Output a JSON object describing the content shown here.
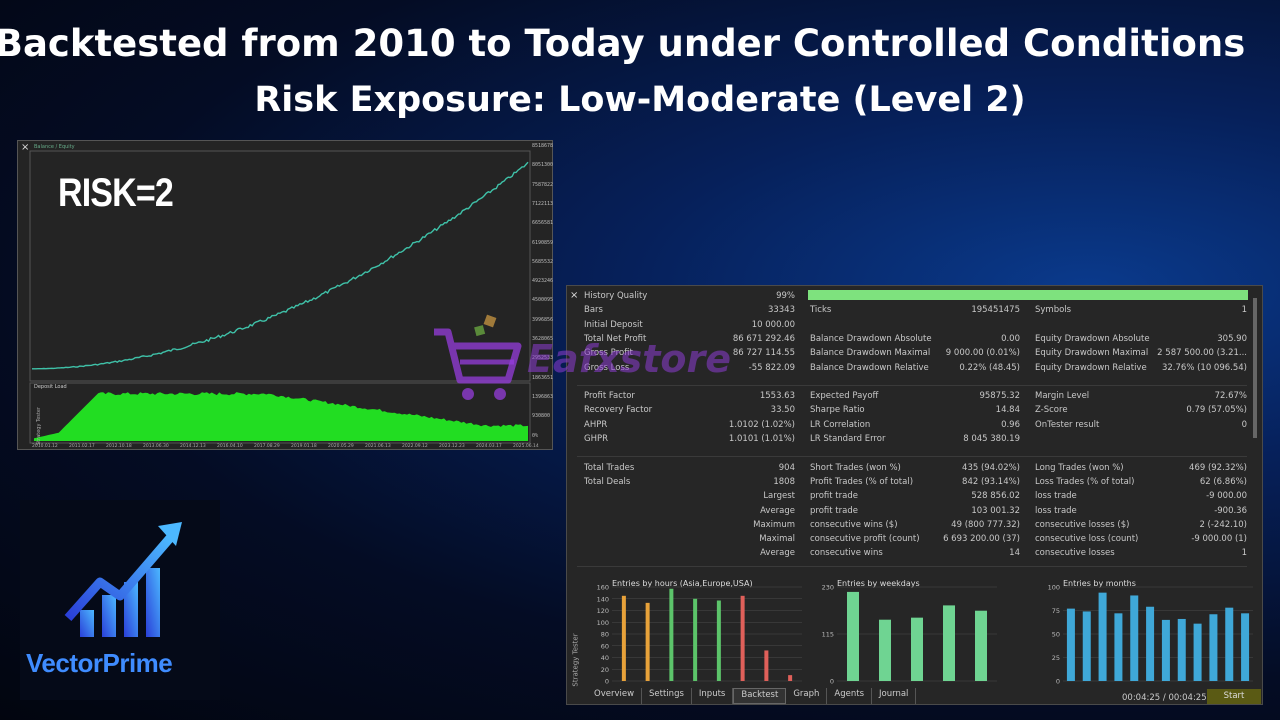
{
  "headline": {
    "line1": "Backtested from 2010 to Today under Controlled Conditions",
    "line2": "Risk Exposure: Low-Moderate (Level 2)"
  },
  "equity_chart": {
    "overlay_label": "RISK=2",
    "legend": "Balance / Equity",
    "deposit_load_label": "Deposit Load",
    "side_label": "Strategy Tester",
    "close_glyph": "×",
    "y_ticks": [
      "8518678",
      "8051300",
      "7587822",
      "7122113",
      "6656581",
      "6190859",
      "5685532",
      "4923246",
      "4500095",
      "3996856",
      "3628065",
      "2952533",
      "1863651",
      "1396863",
      "930800",
      "0%"
    ],
    "x_ticks": [
      "2010.01.12",
      "2011.02.17",
      "2012.10.18",
      "2013.06.30",
      "2014.12.13",
      "2016.04.10",
      "2017.08.29",
      "2019.01.18",
      "2020.05.29",
      "2021.06.13",
      "2022.09.12",
      "2023.12.23",
      "2024.03.17",
      "2025.06.14"
    ],
    "colors": {
      "equity": "#3fc1a8",
      "deposit": "#22dd22",
      "bg": "#242424"
    }
  },
  "report": {
    "close_glyph": "×",
    "rows": [
      [
        "History Quality",
        "99%",
        "",
        "",
        "",
        ""
      ],
      [
        "Bars",
        "33343",
        "Ticks",
        "195451475",
        "Symbols",
        "1"
      ],
      [
        "Initial Deposit",
        "10 000.00",
        "",
        "",
        "",
        ""
      ],
      [
        "Total Net Profit",
        "86 671 292.46",
        "Balance Drawdown Absolute",
        "0.00",
        "Equity Drawdown Absolute",
        "305.90"
      ],
      [
        "Gross Profit",
        "86 727 114.55",
        "Balance Drawdown Maximal",
        "9 000.00 (0.01%)",
        "Equity Drawdown Maximal",
        "2 587 500.00 (3.21..."
      ],
      [
        "Gross Loss",
        "-55 822.09",
        "Balance Drawdown Relative",
        "0.22% (48.45)",
        "Equity Drawdown Relative",
        "32.76% (10 096.54)"
      ],
      [
        "",
        "",
        "",
        "",
        "",
        ""
      ],
      [
        "Profit Factor",
        "1553.63",
        "Expected Payoff",
        "95875.32",
        "Margin Level",
        "72.67%"
      ],
      [
        "Recovery Factor",
        "33.50",
        "Sharpe Ratio",
        "14.84",
        "Z-Score",
        "0.79 (57.05%)"
      ],
      [
        "AHPR",
        "1.0102 (1.02%)",
        "LR Correlation",
        "0.96",
        "OnTester result",
        "0"
      ],
      [
        "GHPR",
        "1.0101 (1.01%)",
        "LR Standard Error",
        "8 045 380.19",
        "",
        ""
      ],
      [
        "",
        "",
        "",
        "",
        "",
        ""
      ],
      [
        "Total Trades",
        "904",
        "Short Trades (won %)",
        "435 (94.02%)",
        "Long Trades (won %)",
        "469 (92.32%)"
      ],
      [
        "Total Deals",
        "1808",
        "Profit Trades (% of total)",
        "842 (93.14%)",
        "Loss Trades (% of total)",
        "62 (6.86%)"
      ],
      [
        "Largest",
        "",
        "profit trade",
        "528 856.02",
        "loss trade",
        "-9 000.00"
      ],
      [
        "Average",
        "",
        "profit trade",
        "103 001.32",
        "loss trade",
        "-900.36"
      ],
      [
        "Maximum",
        "",
        "consecutive wins ($)",
        "49 (800 777.32)",
        "consecutive losses ($)",
        "2 (-242.10)"
      ],
      [
        "Maximal",
        "",
        "consecutive profit (count)",
        "6 693 200.00 (37)",
        "consecutive loss (count)",
        "-9 000.00 (1)"
      ],
      [
        "Average",
        "",
        "consecutive wins",
        "14",
        "consecutive losses",
        "1"
      ]
    ],
    "history_quality_fraction": 0.99,
    "hours_chart": {
      "title": "Entries by hours (Asia,Europe,USA)",
      "y_ticks": [
        "160",
        "140",
        "120",
        "100",
        "80",
        "60",
        "40",
        "20",
        "0"
      ],
      "values": [
        145,
        133,
        157,
        140,
        137,
        145,
        52,
        10
      ],
      "colors": [
        "#e8a23a",
        "#e8a23a",
        "#5cc46a",
        "#5cc46a",
        "#5cc46a",
        "#e0605a",
        "#e0605a",
        "#e0605a"
      ],
      "ymax": 160
    },
    "weekday_chart": {
      "title": "Entries by weekdays",
      "y_ticks": [
        "230",
        "115",
        "0"
      ],
      "values": [
        218,
        150,
        155,
        185,
        172
      ],
      "color": "#6fd492",
      "ymax": 230
    },
    "month_chart": {
      "title": "Entries by months",
      "y_ticks": [
        "100",
        "75",
        "50",
        "25",
        "0"
      ],
      "values": [
        77,
        74,
        94,
        72,
        91,
        79,
        65,
        66,
        61,
        71,
        78,
        72
      ],
      "color": "#3fa8d8",
      "ymax": 100
    },
    "tabs": [
      "Overview",
      "Settings",
      "Inputs",
      "Backtest",
      "Graph",
      "Agents",
      "Journal"
    ],
    "active_tab": "Backtest",
    "side_label": "Strategy Tester",
    "timer": "00:04:25 / 00:04:25",
    "start_label": "Start"
  },
  "watermark": {
    "text": "Eafxstore"
  },
  "logo": {
    "text": "VectorPrime",
    "colors": {
      "primary": "#3f8cff",
      "accent": "#7a4dff"
    }
  }
}
